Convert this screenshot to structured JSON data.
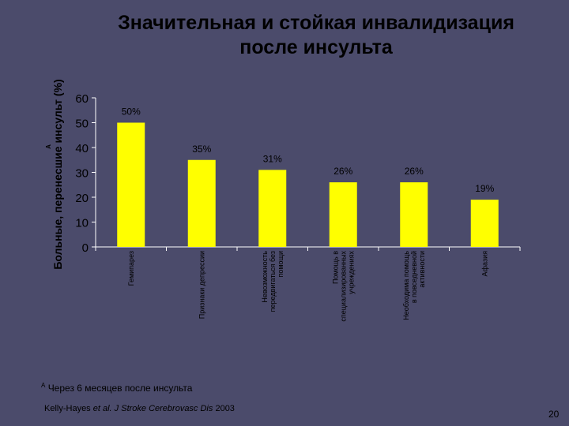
{
  "slide": {
    "title_line1": "Значительная и стойкая инвалидизация",
    "title_line2": "после инсульта",
    "footnote_marker": "A",
    "footnote": "Через 6 месяцев после инсульта",
    "source_authors": "Kelly-Hayes",
    "source_etal": "et al.",
    "source_journal": "J Stroke Cerebrovasc Dis",
    "source_year": "2003",
    "page_number": "20"
  },
  "colors": {
    "background": "#4b4b6b",
    "bar": "#ffff00",
    "text": "#000000",
    "axis": "#ffffff"
  },
  "chart_data": {
    "type": "bar",
    "ylabel": "Больные, перенесшие инсульт (%)",
    "ylabel_marker": "A",
    "ylim": [
      0,
      60
    ],
    "yticks": [
      0,
      10,
      20,
      30,
      40,
      50,
      60
    ],
    "grid": false,
    "categories": [
      [
        "Гемипарез"
      ],
      [
        "Признаки депрессии"
      ],
      [
        "Невозможность",
        "передвигаться без",
        "помощи"
      ],
      [
        "Помощь в",
        "специализированных",
        "учреждениях"
      ],
      [
        "Необходима помощь",
        "в повседневной",
        "активности"
      ],
      [
        "Афазия"
      ]
    ],
    "values": [
      50,
      35,
      31,
      26,
      26,
      19
    ],
    "data_labels": [
      "50%",
      "35%",
      "31%",
      "26%",
      "26%",
      "19%"
    ]
  }
}
